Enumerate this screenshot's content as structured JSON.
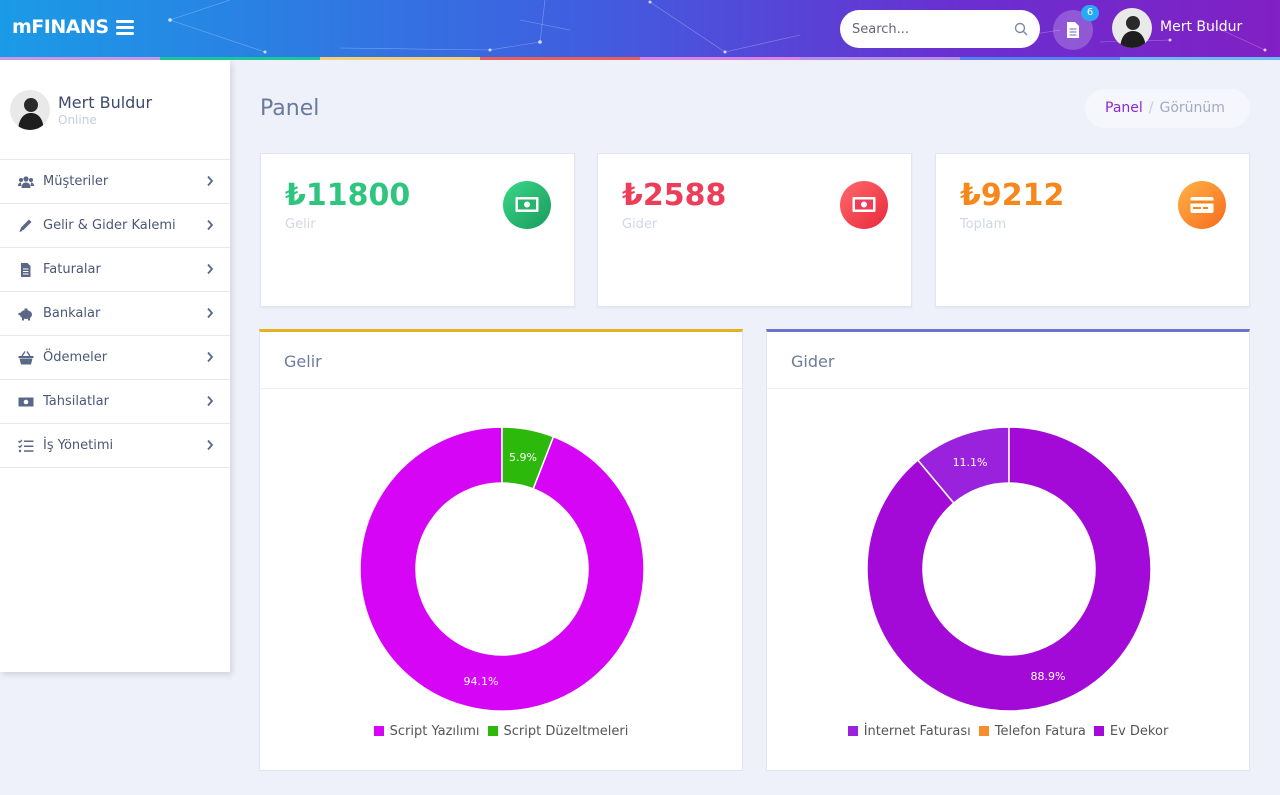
{
  "header": {
    "logo": "mFINANS",
    "search_placeholder": "Search...",
    "notification_count": "6",
    "user_name": "Mert Buldur"
  },
  "colors": {
    "strip": [
      "#c59bef",
      "#1cc69a",
      "#f2d077",
      "#e8605c",
      "#d783e8",
      "#b48cf0",
      "#5a7df0",
      "#6fb6f7"
    ],
    "income": "#2ec57f",
    "expense": "#ee3d58",
    "total": "#f7871b"
  },
  "sidebar": {
    "user_name": "Mert Buldur",
    "status": "Online",
    "items": [
      {
        "label": "Müşteriler",
        "icon": "users-icon"
      },
      {
        "label": "Gelir & Gider Kalemi",
        "icon": "pencil-icon"
      },
      {
        "label": "Faturalar",
        "icon": "file-icon"
      },
      {
        "label": "Bankalar",
        "icon": "piggy-bank-icon"
      },
      {
        "label": "Ödemeler",
        "icon": "basket-icon"
      },
      {
        "label": "Tahsilatlar",
        "icon": "money-icon"
      },
      {
        "label": "İş Yönetimi",
        "icon": "tasks-icon"
      }
    ]
  },
  "main": {
    "title": "Panel",
    "breadcrumb": {
      "link": "Panel",
      "current": "Görünüm"
    },
    "cards": [
      {
        "value": "₺11800",
        "label": "Gelir",
        "icon": "money-bill-icon"
      },
      {
        "value": "₺2588",
        "label": "Gider",
        "icon": "money-bill-icon"
      },
      {
        "value": "₺9212",
        "label": "Toplam",
        "icon": "credit-card-icon"
      }
    ],
    "panels": [
      {
        "title": "Gelir"
      },
      {
        "title": "Gider"
      }
    ]
  },
  "chart_data": [
    {
      "type": "pie",
      "subtype": "doughnut",
      "categories": [
        "Script Yazılımı",
        "Script Düzeltmeleri"
      ],
      "values": [
        94.1,
        5.9
      ],
      "labels": [
        "94.1%",
        "5.9%"
      ],
      "colors": [
        "#d705f5",
        "#2db80c"
      ],
      "legend": "bottom"
    },
    {
      "type": "pie",
      "subtype": "doughnut",
      "categories": [
        "İnternet Faturası",
        "Telefon Fatura",
        "Ev Dekor"
      ],
      "values": [
        11.1,
        0,
        88.9
      ],
      "labels": [
        "11.1%",
        "",
        "88.9%"
      ],
      "colors": [
        "#9b22dd",
        "#f68d2e",
        "#a30ad8"
      ],
      "legend": "bottom"
    }
  ]
}
